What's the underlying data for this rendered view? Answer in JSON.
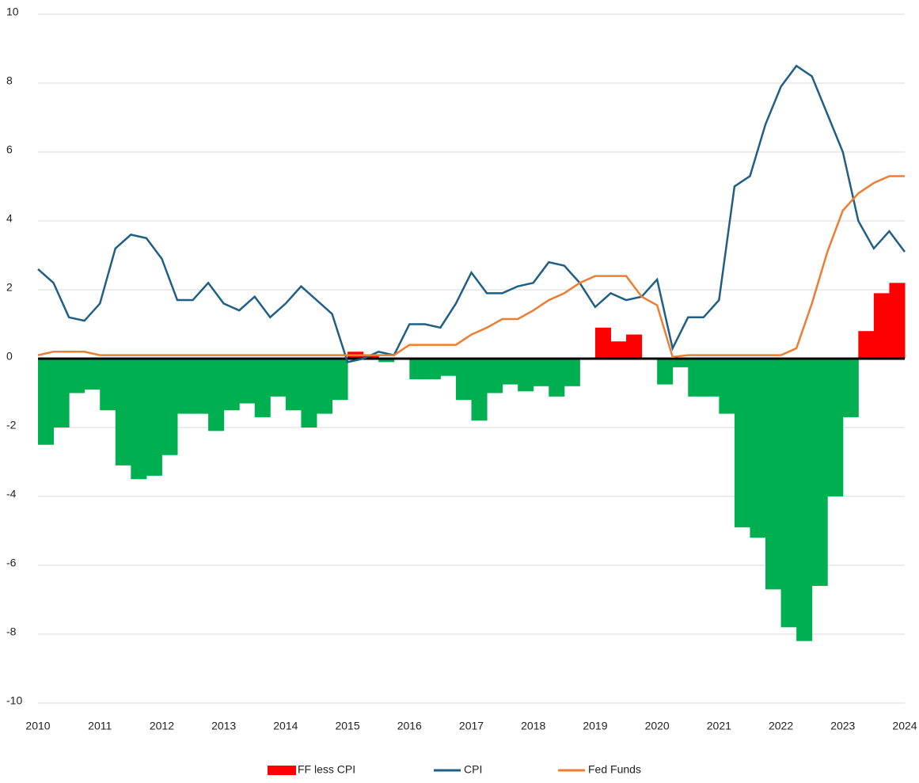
{
  "chart_data": {
    "type": "bar",
    "x": [
      2010,
      2010.25,
      2010.5,
      2010.75,
      2011,
      2011.25,
      2011.5,
      2011.75,
      2012,
      2012.25,
      2012.5,
      2012.75,
      2013,
      2013.25,
      2013.5,
      2013.75,
      2014,
      2014.25,
      2014.5,
      2014.75,
      2015,
      2015.25,
      2015.5,
      2015.75,
      2016,
      2016.25,
      2016.5,
      2016.75,
      2017,
      2017.25,
      2017.5,
      2017.75,
      2018,
      2018.25,
      2018.5,
      2018.75,
      2019,
      2019.25,
      2019.5,
      2019.75,
      2020,
      2020.25,
      2020.5,
      2020.75,
      2021,
      2021.25,
      2021.5,
      2021.75,
      2022,
      2022.25,
      2022.5,
      2022.75,
      2023,
      2023.25,
      2023.5,
      2023.75,
      2024
    ],
    "series": [
      {
        "name": "FF less CPI",
        "type": "bar",
        "color": "#ff0000",
        "negative_color": "#00b050",
        "values": [
          -2.5,
          -2.0,
          -1.0,
          -0.9,
          -1.5,
          -3.1,
          -3.5,
          -3.4,
          -2.8,
          -1.6,
          -1.6,
          -2.1,
          -1.5,
          -1.3,
          -1.7,
          -1.1,
          -1.5,
          -2.0,
          -1.6,
          -1.2,
          0.2,
          0.1,
          -0.1,
          0.0,
          -0.6,
          -0.6,
          -0.5,
          -1.2,
          -1.8,
          -1.0,
          -0.75,
          -0.95,
          -0.8,
          -1.1,
          -0.8,
          0.0,
          0.9,
          0.5,
          0.7,
          0.0,
          -0.75,
          -0.25,
          -1.1,
          -1.1,
          -1.6,
          -4.9,
          -5.2,
          -6.7,
          -7.8,
          -8.2,
          -6.6,
          -4.0,
          -1.7,
          0.8,
          1.9,
          1.6,
          2.2
        ]
      },
      {
        "name": "CPI",
        "type": "line",
        "color": "#1f5f85",
        "values": [
          2.6,
          2.2,
          1.2,
          1.1,
          1.6,
          3.2,
          3.6,
          3.5,
          2.9,
          1.7,
          1.7,
          2.2,
          1.6,
          1.4,
          1.8,
          1.2,
          1.6,
          2.1,
          1.7,
          1.3,
          -0.1,
          0.0,
          0.2,
          0.1,
          1.0,
          1.0,
          0.9,
          1.6,
          2.5,
          1.9,
          1.9,
          2.1,
          2.2,
          2.8,
          2.7,
          2.2,
          1.5,
          1.9,
          1.7,
          1.8,
          2.3,
          0.3,
          1.2,
          1.2,
          1.7,
          5.0,
          5.3,
          6.8,
          7.9,
          8.5,
          8.2,
          7.1,
          6.0,
          4.0,
          3.2,
          3.7,
          3.1
        ]
      },
      {
        "name": "Fed Funds",
        "type": "line",
        "color": "#ed7d31",
        "values": [
          0.1,
          0.2,
          0.2,
          0.2,
          0.1,
          0.1,
          0.1,
          0.1,
          0.1,
          0.1,
          0.1,
          0.1,
          0.1,
          0.1,
          0.1,
          0.1,
          0.1,
          0.1,
          0.1,
          0.1,
          0.1,
          0.1,
          0.1,
          0.1,
          0.4,
          0.4,
          0.4,
          0.4,
          0.7,
          0.9,
          1.15,
          1.15,
          1.4,
          1.7,
          1.9,
          2.2,
          2.4,
          2.4,
          2.4,
          1.8,
          1.55,
          0.05,
          0.1,
          0.1,
          0.1,
          0.1,
          0.1,
          0.1,
          0.1,
          0.3,
          1.6,
          3.1,
          4.3,
          4.8,
          5.1,
          5.3,
          5.3
        ]
      }
    ],
    "xlim": [
      2010,
      2024
    ],
    "xticks": [
      2010,
      2011,
      2012,
      2013,
      2014,
      2015,
      2016,
      2017,
      2018,
      2019,
      2020,
      2021,
      2022,
      2023,
      2024
    ],
    "ylim": [
      -10,
      10
    ],
    "yticks": [
      -10,
      -8,
      -6,
      -4,
      -2,
      0,
      2,
      4,
      6,
      8,
      10
    ],
    "grid": true
  }
}
